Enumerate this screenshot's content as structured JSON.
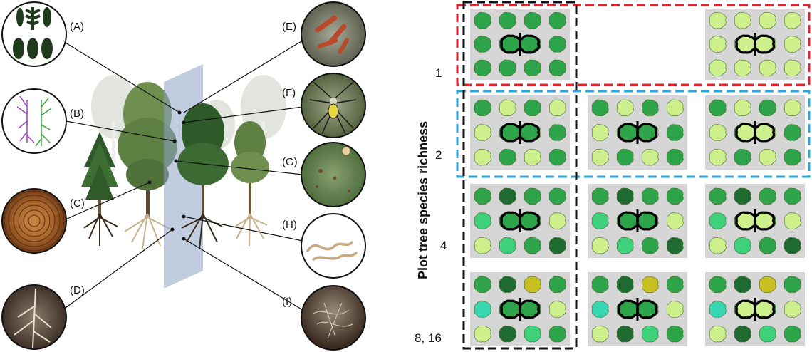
{
  "left_panel": {
    "callouts": [
      {
        "label": "(A)",
        "subject": "leaves-icon"
      },
      {
        "label": "(B)",
        "subject": "root-structure-icon"
      },
      {
        "label": "(C)",
        "subject": "wood-rings-icon"
      },
      {
        "label": "(D)",
        "subject": "fine-roots-icon"
      },
      {
        "label": "(E)",
        "subject": "caterpillars-icon"
      },
      {
        "label": "(F)",
        "subject": "spider-icon"
      },
      {
        "label": "(G)",
        "subject": "leaf-fungus-icon"
      },
      {
        "label": "(H)",
        "subject": "nematodes-icon"
      },
      {
        "label": "(I)",
        "subject": "soil-fungi-icon"
      }
    ]
  },
  "right_panel": {
    "y_axis_label": "Plot tree species richness",
    "rows": [
      "1",
      "2",
      "4",
      "8, 16"
    ],
    "colors": {
      "plot_bg": "#d6d6d6",
      "red_frame": "#e8222b",
      "blue_frame": "#29a8e0",
      "black_frame": "#111111"
    }
  }
}
